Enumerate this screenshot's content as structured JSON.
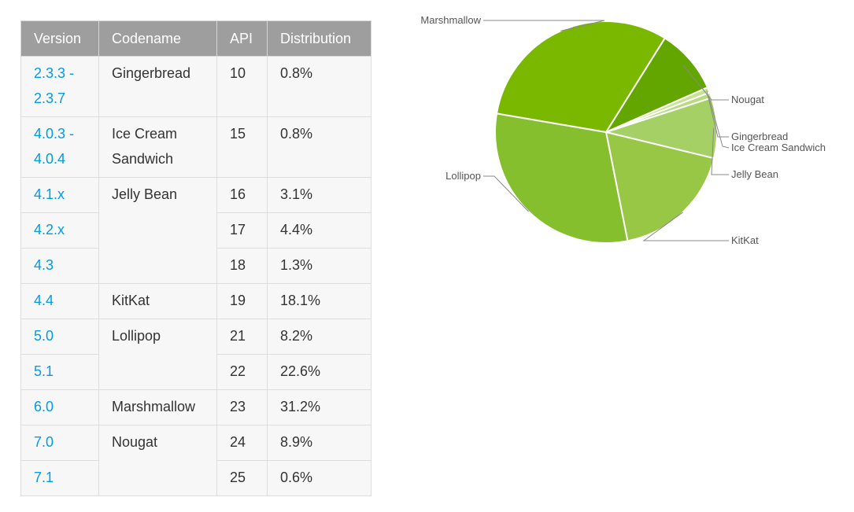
{
  "table": {
    "headers": [
      "Version",
      "Codename",
      "API",
      "Distribution"
    ],
    "rows": [
      {
        "version": "2.3.3 - 2.3.7",
        "codename": "Gingerbread",
        "api": "10",
        "distribution": "0.8%"
      },
      {
        "version": "4.0.3 - 4.0.4",
        "codename": "Ice Cream Sandwich",
        "api": "15",
        "distribution": "0.8%"
      },
      {
        "version": "4.1.x",
        "codename": "Jelly Bean",
        "api": "16",
        "distribution": "3.1%"
      },
      {
        "version": "4.2.x",
        "codename": "",
        "api": "17",
        "distribution": "4.4%"
      },
      {
        "version": "4.3",
        "codename": "",
        "api": "18",
        "distribution": "1.3%"
      },
      {
        "version": "4.4",
        "codename": "KitKat",
        "api": "19",
        "distribution": "18.1%"
      },
      {
        "version": "5.0",
        "codename": "Lollipop",
        "api": "21",
        "distribution": "8.2%"
      },
      {
        "version": "5.1",
        "codename": "",
        "api": "22",
        "distribution": "22.6%"
      },
      {
        "version": "6.0",
        "codename": "Marshmallow",
        "api": "23",
        "distribution": "31.2%"
      },
      {
        "version": "7.0",
        "codename": "Nougat",
        "api": "24",
        "distribution": "8.9%"
      },
      {
        "version": "7.1",
        "codename": "",
        "api": "25",
        "distribution": "0.6%"
      }
    ]
  },
  "chart_data": {
    "type": "pie",
    "title": "",
    "slices": [
      {
        "label": "Nougat",
        "value": 9.5,
        "color": "#64a600"
      },
      {
        "label": "Gingerbread",
        "value": 0.8,
        "color": "#c6e394"
      },
      {
        "label": "Ice Cream Sandwich",
        "value": 0.8,
        "color": "#b7da7c"
      },
      {
        "label": "Jelly Bean",
        "value": 8.8,
        "color": "#a5d066"
      },
      {
        "label": "KitKat",
        "value": 18.1,
        "color": "#97c745"
      },
      {
        "label": "Lollipop",
        "value": 30.8,
        "color": "#85bf2e"
      },
      {
        "label": "Marshmallow",
        "value": 31.2,
        "color": "#7ab800"
      }
    ],
    "legend": "callout labels"
  }
}
